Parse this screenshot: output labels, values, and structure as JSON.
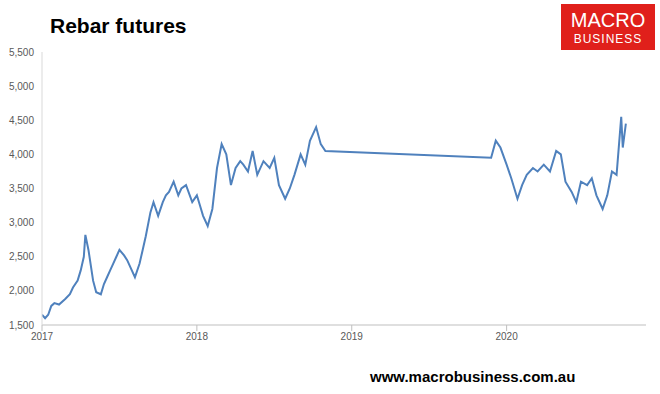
{
  "chart_data": {
    "type": "line",
    "title": "Rebar futures",
    "annotations": [
      "MACRO",
      "BUSINESS",
      "www.macrobusiness.com.au"
    ],
    "x": [
      2017.0,
      2017.02,
      2017.04,
      2017.06,
      2017.08,
      2017.11,
      2017.15,
      2017.18,
      2017.2,
      2017.23,
      2017.25,
      2017.27,
      2017.28,
      2017.3,
      2017.33,
      2017.35,
      2017.38,
      2017.4,
      2017.42,
      2017.44,
      2017.46,
      2017.48,
      2017.5,
      2017.53,
      2017.55,
      2017.58,
      2017.6,
      2017.63,
      2017.65,
      2017.67,
      2017.7,
      2017.72,
      2017.75,
      2017.78,
      2017.8,
      2017.82,
      2017.85,
      2017.88,
      2017.9,
      2017.93,
      2017.97,
      2018.0,
      2018.02,
      2018.04,
      2018.07,
      2018.1,
      2018.13,
      2018.16,
      2018.19,
      2018.22,
      2018.25,
      2018.28,
      2018.3,
      2018.33,
      2018.36,
      2018.39,
      2018.43,
      2018.47,
      2018.5,
      2018.53,
      2018.57,
      2018.6,
      2018.63,
      2018.67,
      2018.7,
      2018.73,
      2018.77,
      2018.8,
      2018.83,
      2019.9,
      2019.93,
      2019.96,
      2020.0,
      2020.03,
      2020.07,
      2020.1,
      2020.13,
      2020.17,
      2020.2,
      2020.24,
      2020.28,
      2020.32,
      2020.35,
      2020.38,
      2020.42,
      2020.45,
      2020.48,
      2020.52,
      2020.55,
      2020.58,
      2020.62,
      2020.65,
      2020.68,
      2020.71,
      2020.74,
      2020.75,
      2020.77
    ],
    "series": [
      {
        "name": "Rebar futures",
        "color": "#4f81bd",
        "values": [
          1650,
          1600,
          1650,
          1780,
          1820,
          1800,
          1880,
          1950,
          2050,
          2150,
          2300,
          2500,
          2820,
          2600,
          2150,
          1980,
          1950,
          2100,
          2200,
          2300,
          2400,
          2500,
          2600,
          2520,
          2450,
          2300,
          2200,
          2400,
          2600,
          2800,
          3150,
          3300,
          3100,
          3300,
          3400,
          3450,
          3600,
          3400,
          3500,
          3550,
          3300,
          3400,
          3250,
          3100,
          2950,
          3200,
          3800,
          4150,
          4000,
          3550,
          3800,
          3900,
          3850,
          3750,
          4050,
          3700,
          3900,
          3800,
          3950,
          3550,
          3350,
          3500,
          3700,
          4000,
          3850,
          4200,
          4400,
          4150,
          4050,
          3950,
          4200,
          4100,
          3850,
          3650,
          3350,
          3550,
          3700,
          3800,
          3750,
          3850,
          3750,
          4050,
          4000,
          3600,
          3450,
          3300,
          3600,
          3550,
          3650,
          3400,
          3200,
          3400,
          3750,
          3700,
          4550,
          4100,
          4450
        ]
      }
    ],
    "xlim": [
      2017,
      2020.9
    ],
    "xticks": [
      2017,
      2018,
      2019,
      2020
    ],
    "ylim": [
      1500,
      5500
    ],
    "yticks": [
      {
        "value": 1500,
        "label": "1,500"
      },
      {
        "value": 2000,
        "label": "2,000"
      },
      {
        "value": 2500,
        "label": "2,500"
      },
      {
        "value": 3000,
        "label": "3,000"
      },
      {
        "value": 3500,
        "label": "3,500"
      },
      {
        "value": 4000,
        "label": "4,000"
      },
      {
        "value": 4500,
        "label": "4,500"
      },
      {
        "value": 5000,
        "label": "5,000"
      },
      {
        "value": 5500,
        "label": "5,500"
      }
    ],
    "grid": false
  }
}
